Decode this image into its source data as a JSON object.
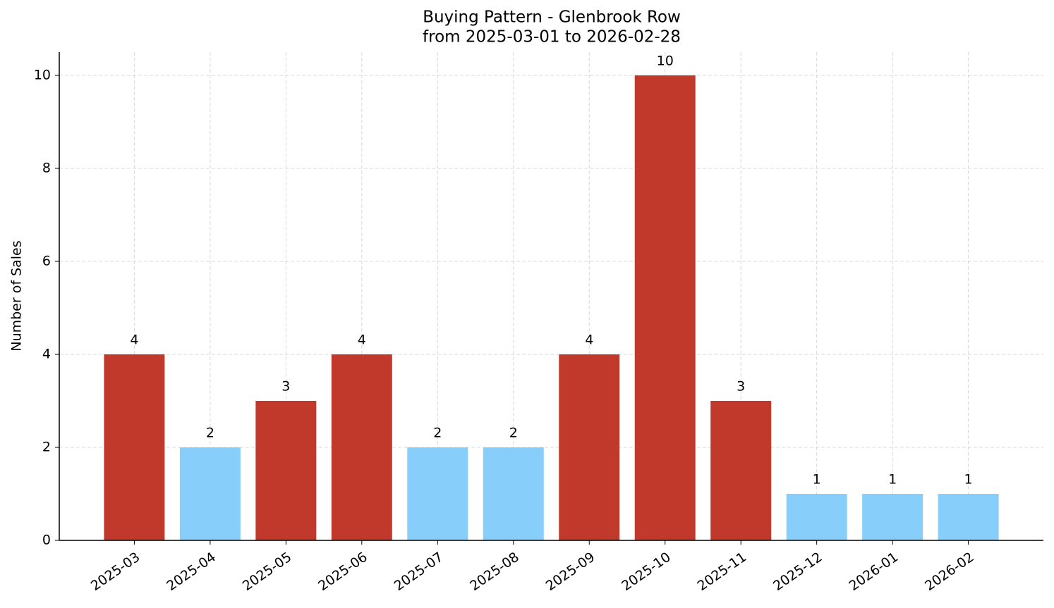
{
  "chart_data": {
    "type": "bar",
    "title": "Buying Pattern - Glenbrook Row",
    "subtitle": "from 2025-03-01 to 2026-02-28",
    "y_label": "Number of Sales",
    "categories": [
      "2025-03",
      "2025-04",
      "2025-05",
      "2025-06",
      "2025-07",
      "2025-08",
      "2025-09",
      "2025-10",
      "2025-11",
      "2025-12",
      "2026-01",
      "2026-02"
    ],
    "values": [
      4,
      2,
      3,
      4,
      2,
      2,
      4,
      10,
      3,
      1,
      1,
      1
    ],
    "colors": [
      "#c0392b",
      "#87cefa",
      "#c0392b",
      "#c0392b",
      "#87cefa",
      "#87cefa",
      "#c0392b",
      "#c0392b",
      "#c0392b",
      "#87cefa",
      "#87cefa",
      "#87cefa"
    ],
    "ylim": [
      0,
      10.5
    ],
    "yticks": [
      0,
      2,
      4,
      6,
      8,
      10
    ],
    "grid": true
  }
}
